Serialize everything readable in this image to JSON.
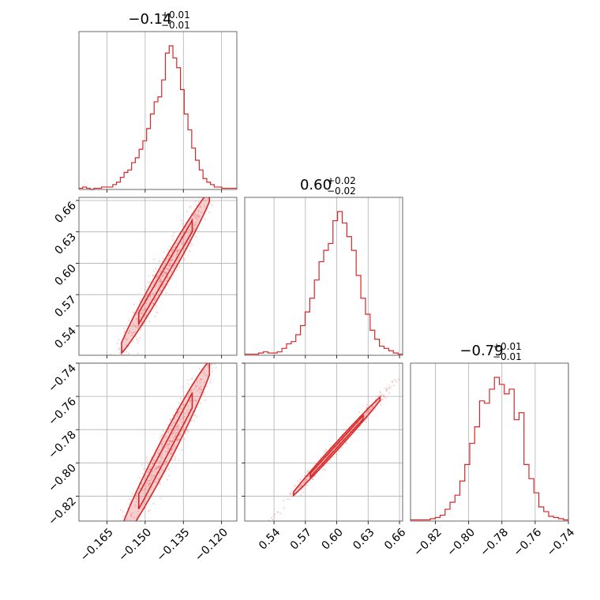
{
  "chart_data": {
    "type": "corner",
    "color": "#d62728",
    "parameters": [
      {
        "title_main": "−0.14",
        "title_sup": "+0.01",
        "title_sub": "−0.01",
        "range": [
          -0.176,
          -0.114
        ],
        "ticks": [
          -0.165,
          -0.15,
          -0.135,
          -0.12
        ],
        "tick_labels": [
          "−0.165",
          "−0.150",
          "−0.135",
          "−0.120"
        ],
        "hist_edges_range": [
          -0.176,
          -0.114
        ],
        "hist_counts": [
          1,
          2,
          1,
          0,
          1,
          1,
          2,
          2,
          2,
          4,
          6,
          10,
          14,
          16,
          22,
          26,
          33,
          40,
          50,
          62,
          72,
          76,
          90,
          112,
          118,
          108,
          100,
          82,
          62,
          49,
          34,
          24,
          16,
          9,
          6,
          4,
          2,
          2,
          1,
          1,
          1,
          1
        ]
      },
      {
        "title_main": "0.60",
        "title_sup": "+0.02",
        "title_sub": "−0.02",
        "range": [
          0.512,
          0.663
        ],
        "ticks": [
          0.54,
          0.57,
          0.6,
          0.63,
          0.66
        ],
        "tick_labels": [
          "0.54",
          "0.57",
          "0.60",
          "0.63",
          "0.66"
        ],
        "hist_edges_range": [
          0.512,
          0.663
        ],
        "hist_counts": [
          1,
          1,
          1,
          2,
          3,
          2,
          2,
          3,
          6,
          10,
          12,
          18,
          26,
          38,
          50,
          66,
          82,
          92,
          98,
          118,
          126,
          116,
          104,
          92,
          70,
          50,
          36,
          22,
          14,
          8,
          6,
          4,
          2,
          1
        ]
      },
      {
        "title_main": "−0.79",
        "title_sup": "+0.01",
        "title_sub": "−0.01",
        "range": [
          -0.835,
          -0.74
        ],
        "ticks": [
          -0.82,
          -0.8,
          -0.78,
          -0.76,
          -0.74
        ],
        "tick_labels": [
          "−0.82",
          "−0.80",
          "−0.78",
          "−0.76",
          "−0.74"
        ],
        "hist_edges_range": [
          -0.835,
          -0.74
        ],
        "hist_counts": [
          1,
          1,
          1,
          1,
          2,
          3,
          5,
          10,
          16,
          22,
          34,
          48,
          66,
          80,
          102,
          100,
          112,
          122,
          116,
          108,
          112,
          86,
          92,
          48,
          36,
          24,
          12,
          8,
          4,
          3,
          2,
          1
        ]
      }
    ],
    "pairs": [
      {
        "x_param": 0,
        "y_param": 1,
        "slope": 4.2,
        "intercept": 1.188,
        "width_y": 0.006,
        "x_center": -0.142,
        "x_sigma": 0.0075
      },
      {
        "x_param": 0,
        "y_param": 2,
        "slope": 2.9,
        "intercept": -0.381,
        "width_y": 0.005,
        "x_center": -0.142,
        "x_sigma": 0.0075
      },
      {
        "x_param": 1,
        "y_param": 2,
        "slope": 0.69,
        "intercept": -1.204,
        "width_y": 0.0012,
        "x_center": 0.6,
        "x_sigma": 0.018
      }
    ]
  }
}
